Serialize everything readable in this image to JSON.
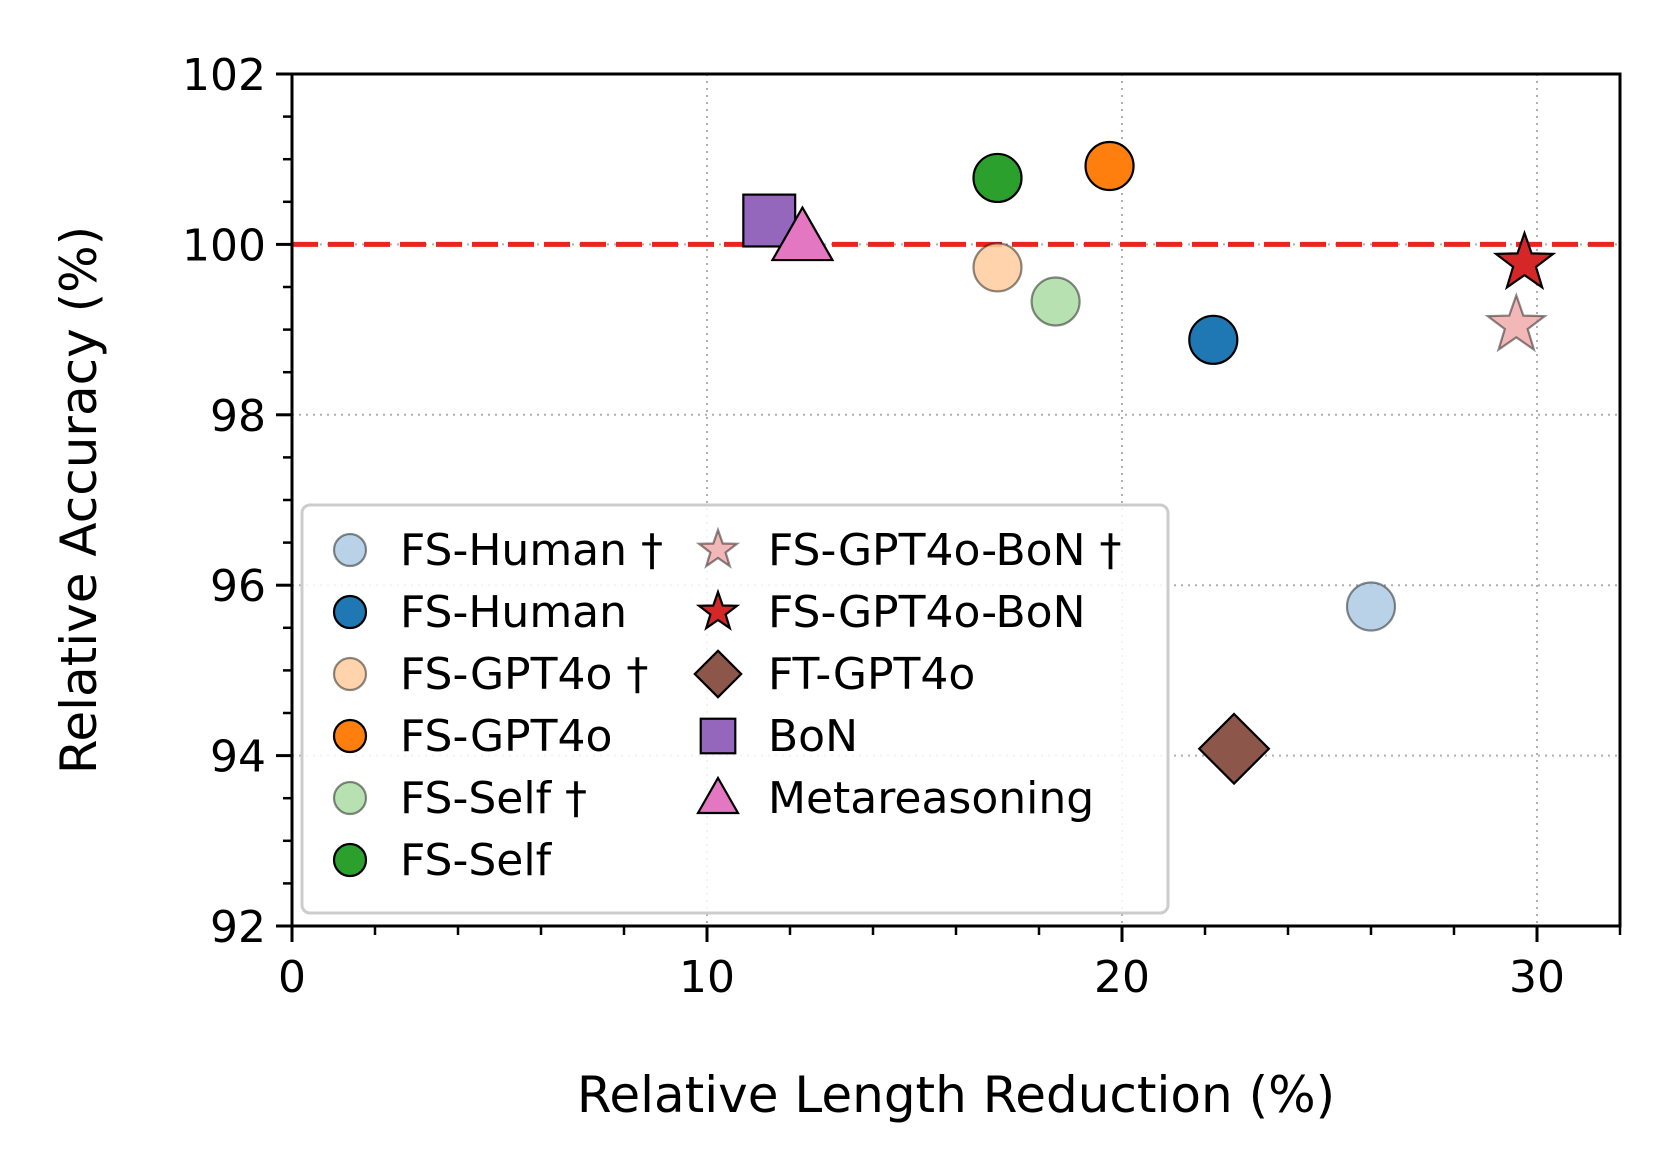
{
  "chart_data": {
    "type": "scatter",
    "title": "",
    "xlabel": "Relative Length Reduction (%)",
    "ylabel": "Relative Accuracy (%)",
    "xlim": [
      0,
      32
    ],
    "ylim": [
      92,
      102
    ],
    "xticks": [
      0,
      10,
      20,
      30
    ],
    "xtick_labels": [
      "0",
      "10",
      "20",
      "30"
    ],
    "yticks": [
      92,
      94,
      96,
      98,
      100,
      102
    ],
    "ytick_labels": [
      "92",
      "94",
      "96",
      "98",
      "100",
      "102"
    ],
    "x_minor_step": 2,
    "y_minor_step": 0.5,
    "grid": true,
    "reference_line": {
      "y": 100,
      "color": "#e8261f",
      "style": "dashed"
    },
    "legend_position": "lower-left",
    "series": [
      {
        "name": "FS-Human †",
        "marker": "circle",
        "color": "#aecae3",
        "alpha": 0.85,
        "x": 26.0,
        "y": 95.75
      },
      {
        "name": "FS-Human",
        "marker": "circle",
        "color": "#1f77b4",
        "alpha": 1.0,
        "x": 22.2,
        "y": 98.88
      },
      {
        "name": "FS-GPT4o †",
        "marker": "circle",
        "color": "#ffcc9e",
        "alpha": 0.85,
        "x": 17.0,
        "y": 99.73
      },
      {
        "name": "FS-GPT4o",
        "marker": "circle",
        "color": "#ff7f0e",
        "alpha": 1.0,
        "x": 19.7,
        "y": 100.92
      },
      {
        "name": "FS-Self †",
        "marker": "circle",
        "color": "#acdca3",
        "alpha": 0.85,
        "x": 18.4,
        "y": 99.33
      },
      {
        "name": "FS-Self",
        "marker": "circle",
        "color": "#2ca02c",
        "alpha": 1.0,
        "x": 17.0,
        "y": 100.78
      },
      {
        "name": "FS-GPT4o-BoN †",
        "marker": "star",
        "color": "#f0aaaa",
        "alpha": 0.85,
        "x": 29.5,
        "y": 99.05
      },
      {
        "name": "FS-GPT4o-BoN",
        "marker": "star",
        "color": "#d62728",
        "alpha": 1.0,
        "x": 29.7,
        "y": 99.78
      },
      {
        "name": "FT-GPT4o",
        "marker": "diamond",
        "color": "#8c564b",
        "alpha": 1.0,
        "x": 22.7,
        "y": 94.08
      },
      {
        "name": "BoN",
        "marker": "square",
        "color": "#9467bd",
        "alpha": 1.0,
        "x": 11.5,
        "y": 100.28
      },
      {
        "name": "Metareasoning",
        "marker": "triangle",
        "color": "#e377c2",
        "alpha": 1.0,
        "x": 12.3,
        "y": 100.08
      }
    ]
  }
}
